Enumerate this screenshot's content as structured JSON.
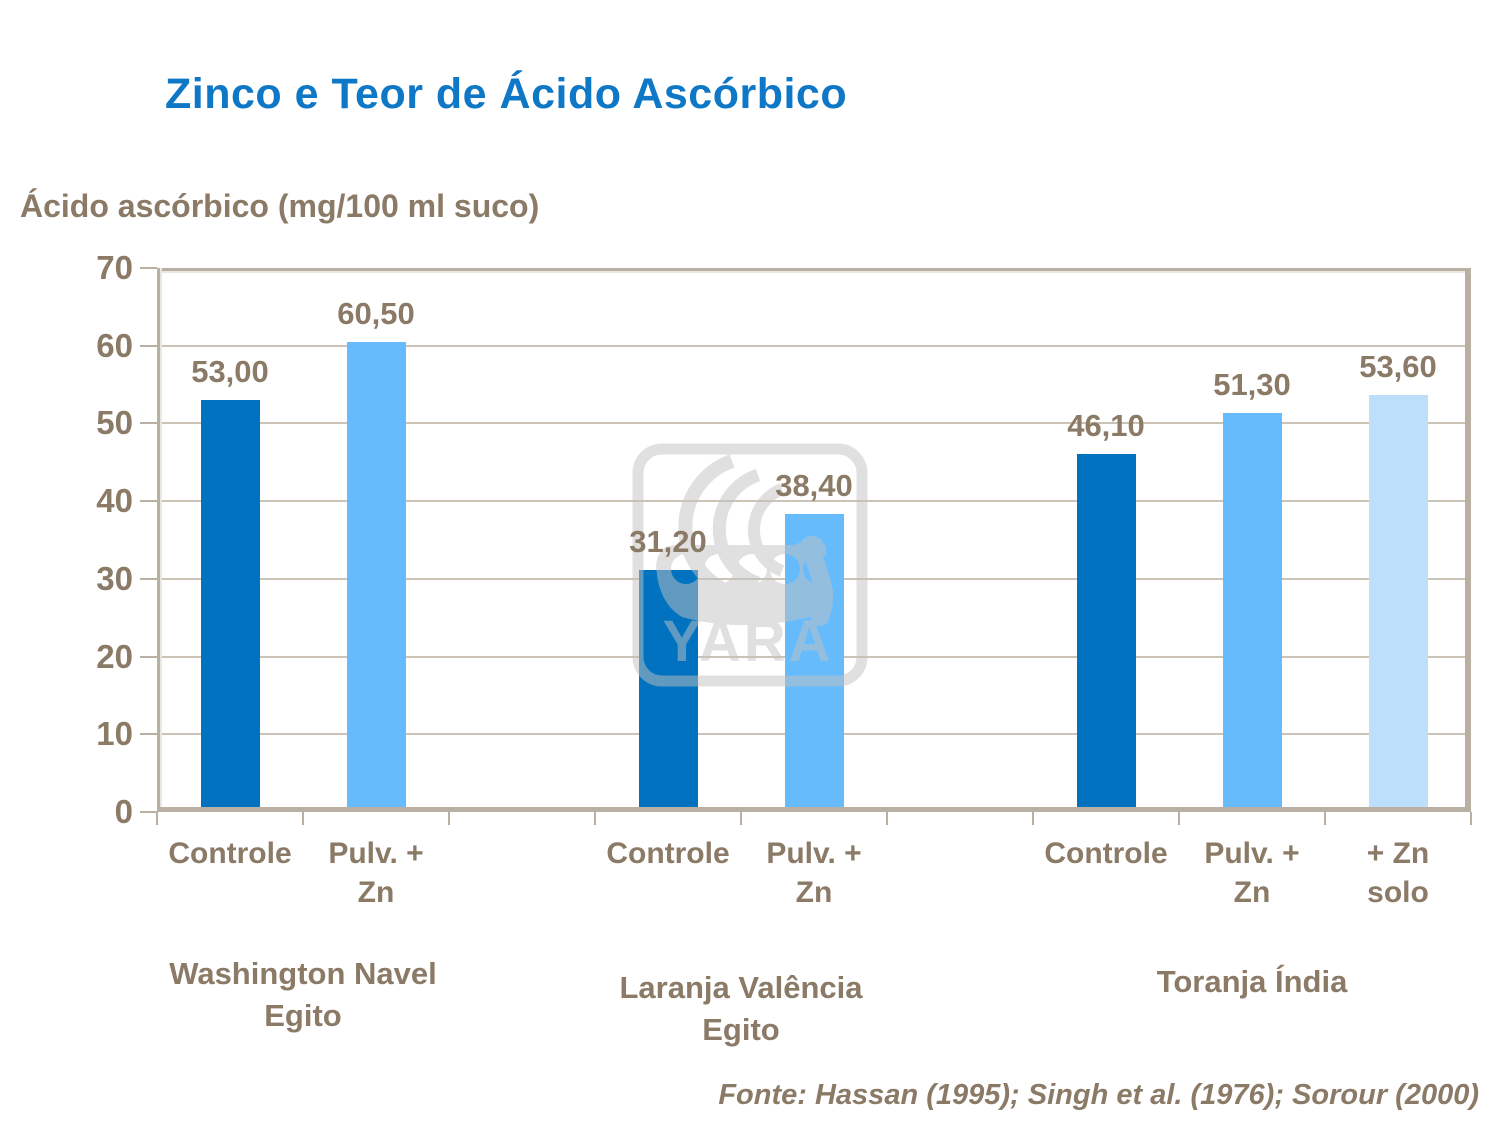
{
  "slide": {
    "title": "Zinco e Teor de Ácido Ascórbico",
    "source": "Fonte: Hassan (1995); Singh et al. (1976); Sorour (2000)",
    "watermark_text": "YARA"
  },
  "colors": {
    "title": "#0E77C6",
    "text": "#8A7A66",
    "frame": "#B9AFA2",
    "gridline": "#CCC3B7"
  },
  "chart_data": {
    "type": "bar",
    "title": "Zinco e Teor de Ácido Ascórbico",
    "ylabel": "Ácido ascórbico (mg/100 ml suco)",
    "ylim": [
      0,
      70
    ],
    "ytick_step": 10,
    "yticks": [
      0,
      10,
      20,
      30,
      40,
      50,
      60,
      70
    ],
    "grid": true,
    "legend": "none",
    "bar_colors": {
      "dark": "#0072C0",
      "medium": "#66BBFC",
      "light": "#BDDFFB"
    },
    "groups": [
      {
        "name_lines": [
          "Washington Navel",
          "Egito"
        ],
        "bars": [
          {
            "category_lines": [
              "Controle"
            ],
            "value": 53.0,
            "value_label": "53,00",
            "shade": "dark"
          },
          {
            "category_lines": [
              "Pulv. +",
              "Zn"
            ],
            "value": 60.5,
            "value_label": "60,50",
            "shade": "medium"
          }
        ]
      },
      {
        "name_lines": [
          "Laranja Valência",
          "Egito"
        ],
        "bars": [
          {
            "category_lines": [
              "Controle"
            ],
            "value": 31.2,
            "value_label": "31,20",
            "shade": "dark"
          },
          {
            "category_lines": [
              "Pulv. +",
              "Zn"
            ],
            "value": 38.4,
            "value_label": "38,40",
            "shade": "medium"
          }
        ]
      },
      {
        "name_lines": [
          "Toranja Índia"
        ],
        "bars": [
          {
            "category_lines": [
              "Controle"
            ],
            "value": 46.1,
            "value_label": "46,10",
            "shade": "dark"
          },
          {
            "category_lines": [
              "Pulv. +",
              "Zn"
            ],
            "value": 51.3,
            "value_label": "51,30",
            "shade": "medium"
          },
          {
            "category_lines": [
              "+ Zn",
              "solo"
            ],
            "value": 53.6,
            "value_label": "53,60",
            "shade": "light"
          }
        ]
      }
    ],
    "source": "Fonte: Hassan (1995); Singh et al. (1976); Sorour (2000)"
  }
}
